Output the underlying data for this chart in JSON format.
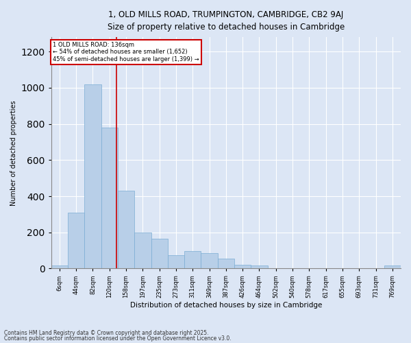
{
  "title_line1": "1, OLD MILLS ROAD, TRUMPINGTON, CAMBRIDGE, CB2 9AJ",
  "title_line2": "Size of property relative to detached houses in Cambridge",
  "xlabel": "Distribution of detached houses by size in Cambridge",
  "ylabel": "Number of detached properties",
  "categories": [
    "6sqm",
    "44sqm",
    "82sqm",
    "120sqm",
    "158sqm",
    "197sqm",
    "235sqm",
    "273sqm",
    "311sqm",
    "349sqm",
    "387sqm",
    "426sqm",
    "464sqm",
    "502sqm",
    "540sqm",
    "578sqm",
    "617sqm",
    "655sqm",
    "693sqm",
    "731sqm",
    "769sqm"
  ],
  "values": [
    15,
    310,
    1020,
    780,
    430,
    200,
    165,
    75,
    95,
    85,
    55,
    20,
    15,
    0,
    0,
    0,
    0,
    0,
    0,
    0,
    15
  ],
  "bar_color": "#b8cfe8",
  "bar_edge_color": "#7aadd4",
  "bg_color": "#dce6f5",
  "grid_color": "#ffffff",
  "annotation_line1": "1 OLD MILLS ROAD: 136sqm",
  "annotation_line2": "← 54% of detached houses are smaller (1,652)",
  "annotation_line3": "45% of semi-detached houses are larger (1,399) →",
  "annotation_box_color": "#ffffff",
  "annotation_box_edge": "#cc0000",
  "red_line_color": "#cc0000",
  "red_line_x": 3.42,
  "ylim": [
    0,
    1280
  ],
  "yticks": [
    0,
    200,
    400,
    600,
    800,
    1000,
    1200
  ],
  "fig_bg_color": "#dce6f5",
  "footnote1": "Contains HM Land Registry data © Crown copyright and database right 2025.",
  "footnote2": "Contains public sector information licensed under the Open Government Licence v3.0."
}
